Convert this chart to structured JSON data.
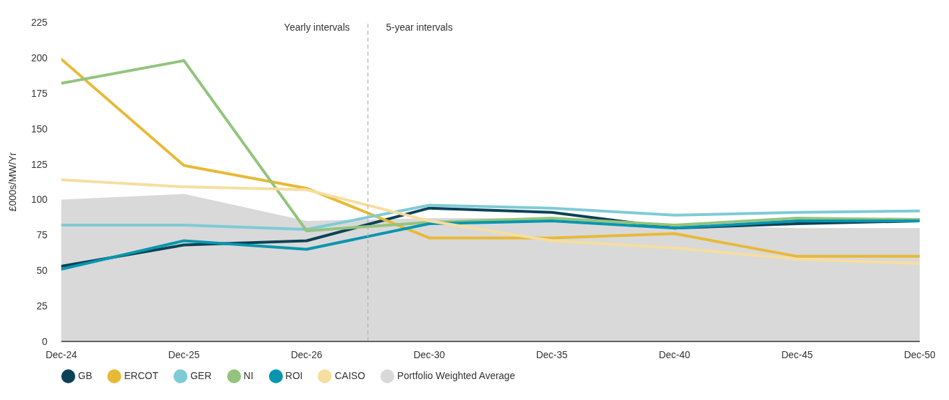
{
  "chart_data": {
    "type": "line",
    "ylabel": "£000s/MW/Yr",
    "categories": [
      "Dec-24",
      "Dec-25",
      "Dec-26",
      "Dec-30",
      "Dec-35",
      "Dec-40",
      "Dec-45",
      "Dec-50"
    ],
    "ylim": [
      0,
      225
    ],
    "yticks": [
      0,
      25,
      50,
      75,
      100,
      125,
      150,
      175,
      200,
      225
    ],
    "grid": false,
    "legend": "bottom left",
    "marker": "none",
    "line_style": "solid",
    "annotations": [
      "Yearly intervals",
      "5-year intervals"
    ],
    "series": [
      {
        "name": "GB",
        "color": "#0b4257",
        "values": [
          53,
          68,
          71,
          94,
          91,
          80,
          83,
          85
        ]
      },
      {
        "name": "ERCOT",
        "color": "#e8b935",
        "values": [
          199,
          124,
          108,
          73,
          73,
          76,
          60,
          60
        ]
      },
      {
        "name": "GER",
        "color": "#7ecbd6",
        "values": [
          82,
          82,
          79,
          96,
          94,
          89,
          91,
          92
        ]
      },
      {
        "name": "NI",
        "color": "#93c47d",
        "values": [
          182,
          198,
          78,
          84,
          87,
          82,
          87,
          86
        ]
      },
      {
        "name": "ROI",
        "color": "#0796ae",
        "values": [
          51,
          71,
          65,
          83,
          85,
          80,
          85,
          85
        ]
      },
      {
        "name": "CAISO",
        "color": "#f5dea0",
        "values": [
          114,
          109,
          107,
          85,
          71,
          66,
          58,
          55
        ]
      },
      {
        "name": "Portfolio Weighted Average",
        "type": "area",
        "color": "#d9d9d9",
        "values": [
          100,
          104,
          85,
          87,
          87,
          82,
          80,
          80
        ]
      }
    ]
  }
}
